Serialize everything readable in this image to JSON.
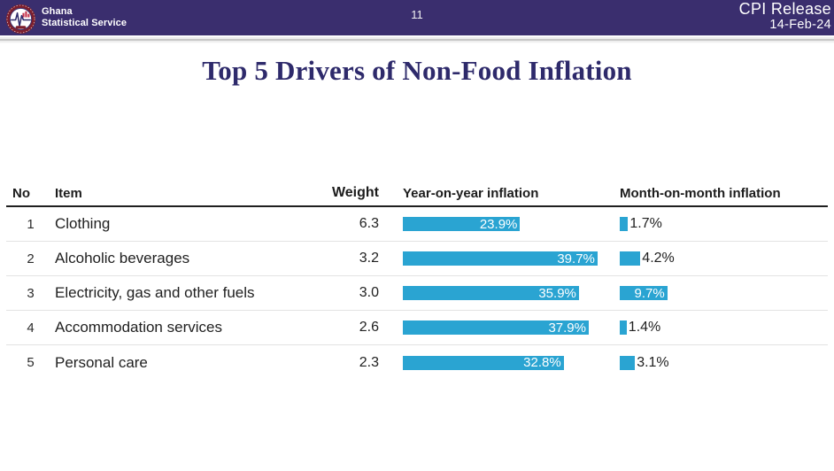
{
  "banner": {
    "org_line1": "Ghana",
    "org_line2": "Statistical Service",
    "page_number": "11",
    "release_title": "CPI Release",
    "release_date": "14-Feb-24"
  },
  "slide": {
    "title": "Top 5 Drivers of Non-Food Inflation"
  },
  "table": {
    "columns": {
      "no": "No",
      "item": "Item",
      "weight": "Weight",
      "yoy": "Year-on-year inflation",
      "mom": "Month-on-month inflation"
    },
    "rows": [
      {
        "no": "1",
        "item": "Clothing",
        "weight": "6.3",
        "yoy_value": 23.9,
        "yoy_label": "23.9%",
        "mom_value": 1.7,
        "mom_label": "1.7%"
      },
      {
        "no": "2",
        "item": "Alcoholic beverages",
        "weight": "3.2",
        "yoy_value": 39.7,
        "yoy_label": "39.7%",
        "mom_value": 4.2,
        "mom_label": "4.2%"
      },
      {
        "no": "3",
        "item": "Electricity, gas and other fuels",
        "weight": "3.0",
        "yoy_value": 35.9,
        "yoy_label": "35.9%",
        "mom_value": 9.7,
        "mom_label": "9.7%"
      },
      {
        "no": "4",
        "item": "Accommodation services",
        "weight": "2.6",
        "yoy_value": 37.9,
        "yoy_label": "37.9%",
        "mom_value": 1.4,
        "mom_label": "1.4%"
      },
      {
        "no": "5",
        "item": "Personal care",
        "weight": "2.3",
        "yoy_value": 32.8,
        "yoy_label": "32.8%",
        "mom_value": 3.1,
        "mom_label": "3.1%"
      }
    ]
  },
  "colors": {
    "bar_blue": "#2AA4D2",
    "banner_purple": "#3A2E6E",
    "title_indigo": "#2E2A6B",
    "logo_maroon": "#7D1F2D"
  },
  "chart_data": {
    "type": "bar",
    "orientation": "horizontal",
    "title": "Top 5 Drivers of Non-Food Inflation",
    "categories": [
      "Clothing",
      "Alcoholic beverages",
      "Electricity, gas and other fuels",
      "Accommodation services",
      "Personal care"
    ],
    "series": [
      {
        "name": "Weight",
        "values": [
          6.3,
          3.2,
          3.0,
          2.6,
          2.3
        ]
      },
      {
        "name": "Year-on-year inflation (%)",
        "values": [
          23.9,
          39.7,
          35.9,
          37.9,
          32.8
        ]
      },
      {
        "name": "Month-on-month inflation (%)",
        "values": [
          1.7,
          4.2,
          9.7,
          1.4,
          3.1
        ]
      }
    ],
    "data_labels": true,
    "legend_position": "none",
    "grid": false
  }
}
